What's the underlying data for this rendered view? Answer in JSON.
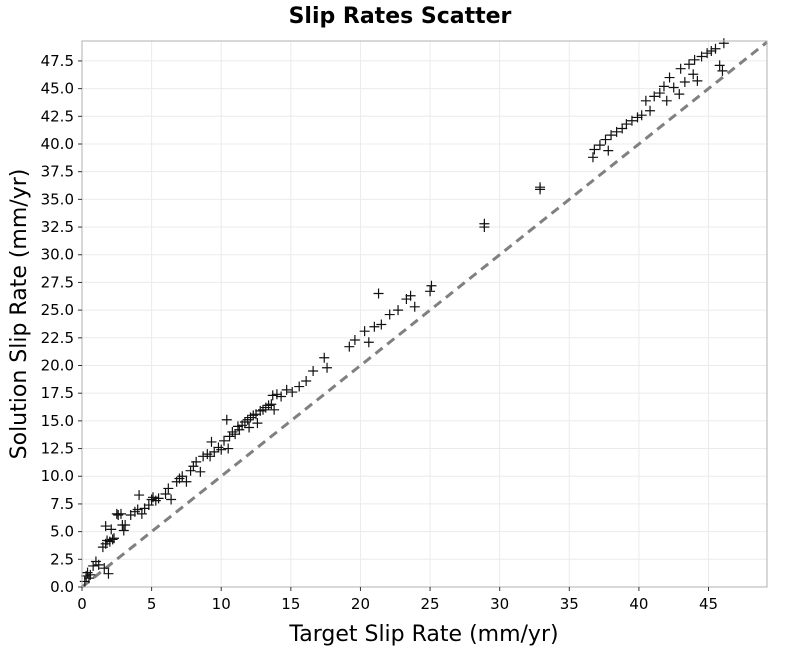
{
  "chart_data": {
    "type": "scatter",
    "title": "Slip Rates Scatter",
    "xlabel": "Target Slip Rate (mm/yr)",
    "ylabel": "Solution Slip Rate (mm/yr)",
    "xlim": [
      0,
      49.2
    ],
    "ylim": [
      0,
      49.3
    ],
    "x_ticks": [
      0,
      5,
      10,
      15,
      20,
      25,
      30,
      35,
      40,
      45
    ],
    "x_tick_labels": [
      "0",
      "5",
      "10",
      "15",
      "20",
      "25",
      "30",
      "35",
      "40",
      "45"
    ],
    "y_ticks": [
      0,
      2.5,
      5,
      7.5,
      10,
      12.5,
      15,
      17.5,
      20,
      22.5,
      25,
      27.5,
      30,
      32.5,
      35,
      37.5,
      40,
      42.5,
      45,
      47.5
    ],
    "y_tick_labels": [
      "0.0",
      "2.5",
      "5.0",
      "7.5",
      "10.0",
      "12.5",
      "15.0",
      "17.5",
      "20.0",
      "22.5",
      "25.0",
      "27.5",
      "30.0",
      "32.5",
      "35.0",
      "37.5",
      "40.0",
      "42.5",
      "45.0",
      "47.5"
    ],
    "grid": true,
    "marker": "plus",
    "marker_color": "#111111",
    "reference_line": {
      "style": "dashed",
      "color": "#808080",
      "x": [
        0,
        49.2
      ],
      "y": [
        0,
        49.2
      ]
    },
    "series": [
      {
        "points": [
          [
            0.2,
            0.5
          ],
          [
            0.3,
            1.0
          ],
          [
            0.4,
            1.3
          ],
          [
            0.5,
            0.8
          ],
          [
            0.6,
            1.1
          ],
          [
            0.8,
            1.9
          ],
          [
            1.0,
            2.3
          ],
          [
            1.2,
            2.0
          ],
          [
            1.5,
            3.6
          ],
          [
            1.6,
            1.7
          ],
          [
            1.7,
            3.9
          ],
          [
            1.7,
            5.5
          ],
          [
            1.8,
            4.2
          ],
          [
            1.9,
            1.2
          ],
          [
            2.0,
            4.1
          ],
          [
            2.1,
            5.2
          ],
          [
            2.2,
            4.3
          ],
          [
            2.3,
            4.4
          ],
          [
            2.5,
            6.6
          ],
          [
            2.6,
            6.5
          ],
          [
            2.8,
            6.6
          ],
          [
            2.9,
            5.6
          ],
          [
            3.0,
            5.1
          ],
          [
            3.1,
            5.6
          ],
          [
            3.5,
            6.5
          ],
          [
            3.8,
            6.8
          ],
          [
            4.0,
            7.0
          ],
          [
            4.1,
            8.3
          ],
          [
            4.3,
            6.6
          ],
          [
            4.5,
            7.1
          ],
          [
            4.8,
            7.4
          ],
          [
            5.0,
            7.9
          ],
          [
            5.1,
            8.1
          ],
          [
            5.3,
            7.8
          ],
          [
            5.5,
            8.0
          ],
          [
            6.0,
            8.4
          ],
          [
            6.2,
            8.9
          ],
          [
            6.4,
            7.9
          ],
          [
            6.8,
            9.5
          ],
          [
            7.0,
            9.8
          ],
          [
            7.2,
            10.0
          ],
          [
            7.5,
            9.5
          ],
          [
            7.8,
            10.5
          ],
          [
            8.0,
            10.9
          ],
          [
            8.2,
            11.3
          ],
          [
            8.5,
            10.4
          ],
          [
            8.7,
            11.8
          ],
          [
            9.0,
            12.0
          ],
          [
            9.2,
            11.8
          ],
          [
            9.3,
            13.1
          ],
          [
            9.5,
            12.2
          ],
          [
            9.8,
            12.6
          ],
          [
            10.0,
            12.4
          ],
          [
            10.2,
            13.2
          ],
          [
            10.4,
            15.1
          ],
          [
            10.5,
            12.5
          ],
          [
            10.6,
            13.6
          ],
          [
            10.8,
            14.0
          ],
          [
            11.0,
            13.8
          ],
          [
            11.2,
            14.5
          ],
          [
            11.3,
            14.2
          ],
          [
            11.5,
            14.6
          ],
          [
            11.7,
            14.9
          ],
          [
            11.9,
            15.1
          ],
          [
            12.0,
            14.4
          ],
          [
            12.1,
            15.3
          ],
          [
            12.3,
            15.5
          ],
          [
            12.5,
            15.6
          ],
          [
            12.6,
            14.8
          ],
          [
            12.8,
            15.9
          ],
          [
            13.0,
            16.0
          ],
          [
            13.2,
            16.2
          ],
          [
            13.4,
            16.4
          ],
          [
            13.6,
            16.5
          ],
          [
            13.7,
            17.3
          ],
          [
            13.8,
            16.0
          ],
          [
            14.0,
            17.4
          ],
          [
            14.3,
            17.2
          ],
          [
            14.7,
            17.8
          ],
          [
            15.1,
            17.6
          ],
          [
            15.6,
            18.1
          ],
          [
            16.1,
            18.6
          ],
          [
            16.6,
            19.5
          ],
          [
            17.4,
            20.7
          ],
          [
            17.6,
            19.8
          ],
          [
            19.2,
            21.7
          ],
          [
            19.6,
            22.3
          ],
          [
            20.3,
            23.1
          ],
          [
            20.6,
            22.1
          ],
          [
            21.0,
            23.5
          ],
          [
            21.3,
            26.5
          ],
          [
            21.5,
            23.7
          ],
          [
            22.1,
            24.6
          ],
          [
            22.7,
            25.0
          ],
          [
            23.3,
            26.0
          ],
          [
            23.6,
            26.3
          ],
          [
            23.9,
            25.3
          ],
          [
            25.0,
            26.7
          ],
          [
            25.1,
            27.2
          ],
          [
            28.9,
            32.5
          ],
          [
            28.9,
            32.8
          ],
          [
            32.9,
            35.9
          ],
          [
            32.9,
            36.1
          ],
          [
            36.7,
            38.8
          ],
          [
            36.8,
            39.5
          ],
          [
            37.2,
            39.9
          ],
          [
            37.6,
            40.4
          ],
          [
            37.8,
            39.4
          ],
          [
            38.0,
            40.8
          ],
          [
            38.4,
            41.1
          ],
          [
            38.8,
            41.4
          ],
          [
            39.1,
            41.8
          ],
          [
            39.5,
            42.1
          ],
          [
            39.9,
            42.4
          ],
          [
            40.2,
            42.6
          ],
          [
            40.5,
            43.9
          ],
          [
            40.8,
            43.0
          ],
          [
            41.1,
            44.3
          ],
          [
            41.5,
            44.6
          ],
          [
            41.8,
            45.2
          ],
          [
            42.0,
            43.9
          ],
          [
            42.2,
            46.0
          ],
          [
            42.5,
            45.1
          ],
          [
            42.9,
            44.5
          ],
          [
            43.0,
            46.8
          ],
          [
            43.3,
            45.6
          ],
          [
            43.6,
            47.2
          ],
          [
            43.9,
            46.3
          ],
          [
            44.0,
            47.6
          ],
          [
            44.2,
            45.7
          ],
          [
            44.5,
            47.9
          ],
          [
            44.9,
            48.2
          ],
          [
            45.2,
            48.4
          ],
          [
            45.5,
            48.6
          ],
          [
            45.8,
            47.1
          ],
          [
            46.0,
            46.6
          ],
          [
            46.1,
            49.1
          ]
        ]
      }
    ]
  }
}
